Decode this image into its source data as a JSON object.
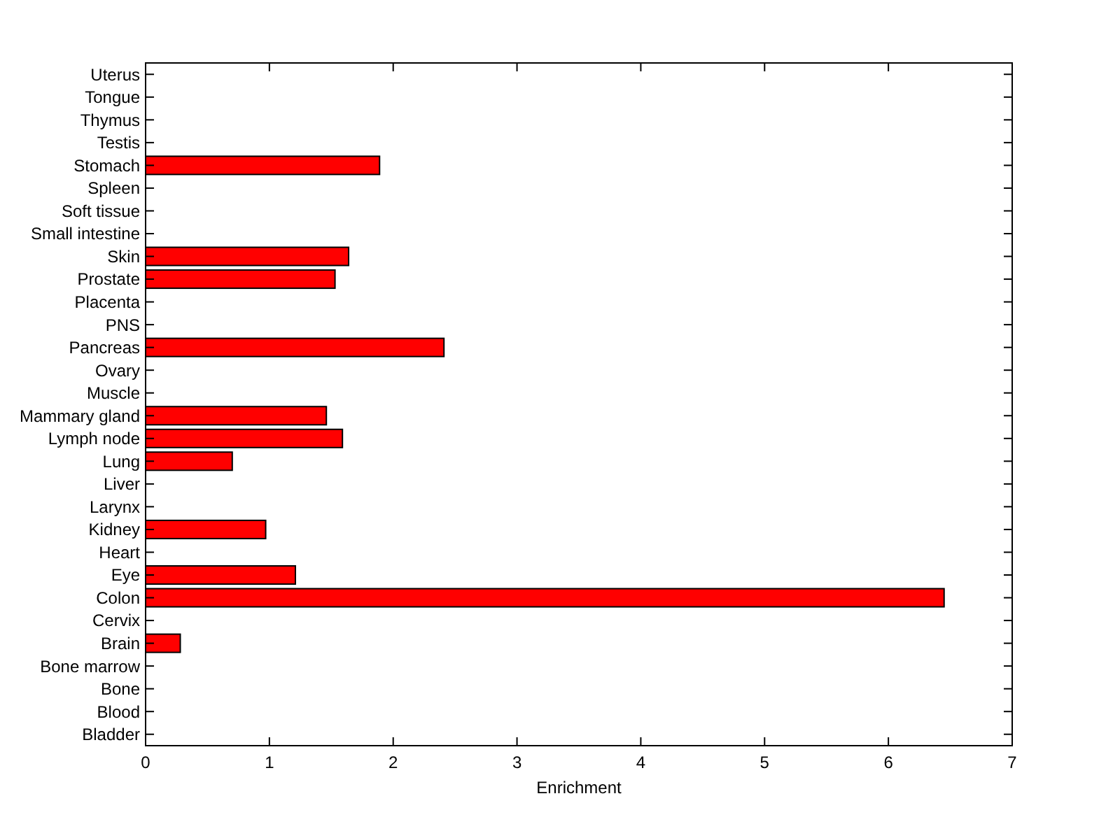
{
  "chart_data": {
    "type": "bar",
    "orientation": "horizontal",
    "xlabel": "Enrichment",
    "categories": [
      "Uterus",
      "Tongue",
      "Thymus",
      "Testis",
      "Stomach",
      "Spleen",
      "Soft tissue",
      "Small intestine",
      "Skin",
      "Prostate",
      "Placenta",
      "PNS",
      "Pancreas",
      "Ovary",
      "Muscle",
      "Mammary gland",
      "Lymph node",
      "Lung",
      "Liver",
      "Larynx",
      "Kidney",
      "Heart",
      "Eye",
      "Colon",
      "Cervix",
      "Brain",
      "Bone marrow",
      "Bone",
      "Blood",
      "Bladder"
    ],
    "values": [
      0,
      0,
      0,
      0,
      1.89,
      0,
      0,
      0,
      1.64,
      1.53,
      0,
      0,
      2.41,
      0,
      0,
      1.46,
      1.59,
      0.7,
      0,
      0,
      0.97,
      0,
      1.21,
      6.45,
      0,
      0.28,
      0,
      0,
      0,
      0
    ],
    "color": "#ff0000",
    "xlim": [
      0,
      7
    ],
    "xticks": [
      0,
      1,
      2,
      3,
      4,
      5,
      6,
      7
    ],
    "grid": false
  }
}
